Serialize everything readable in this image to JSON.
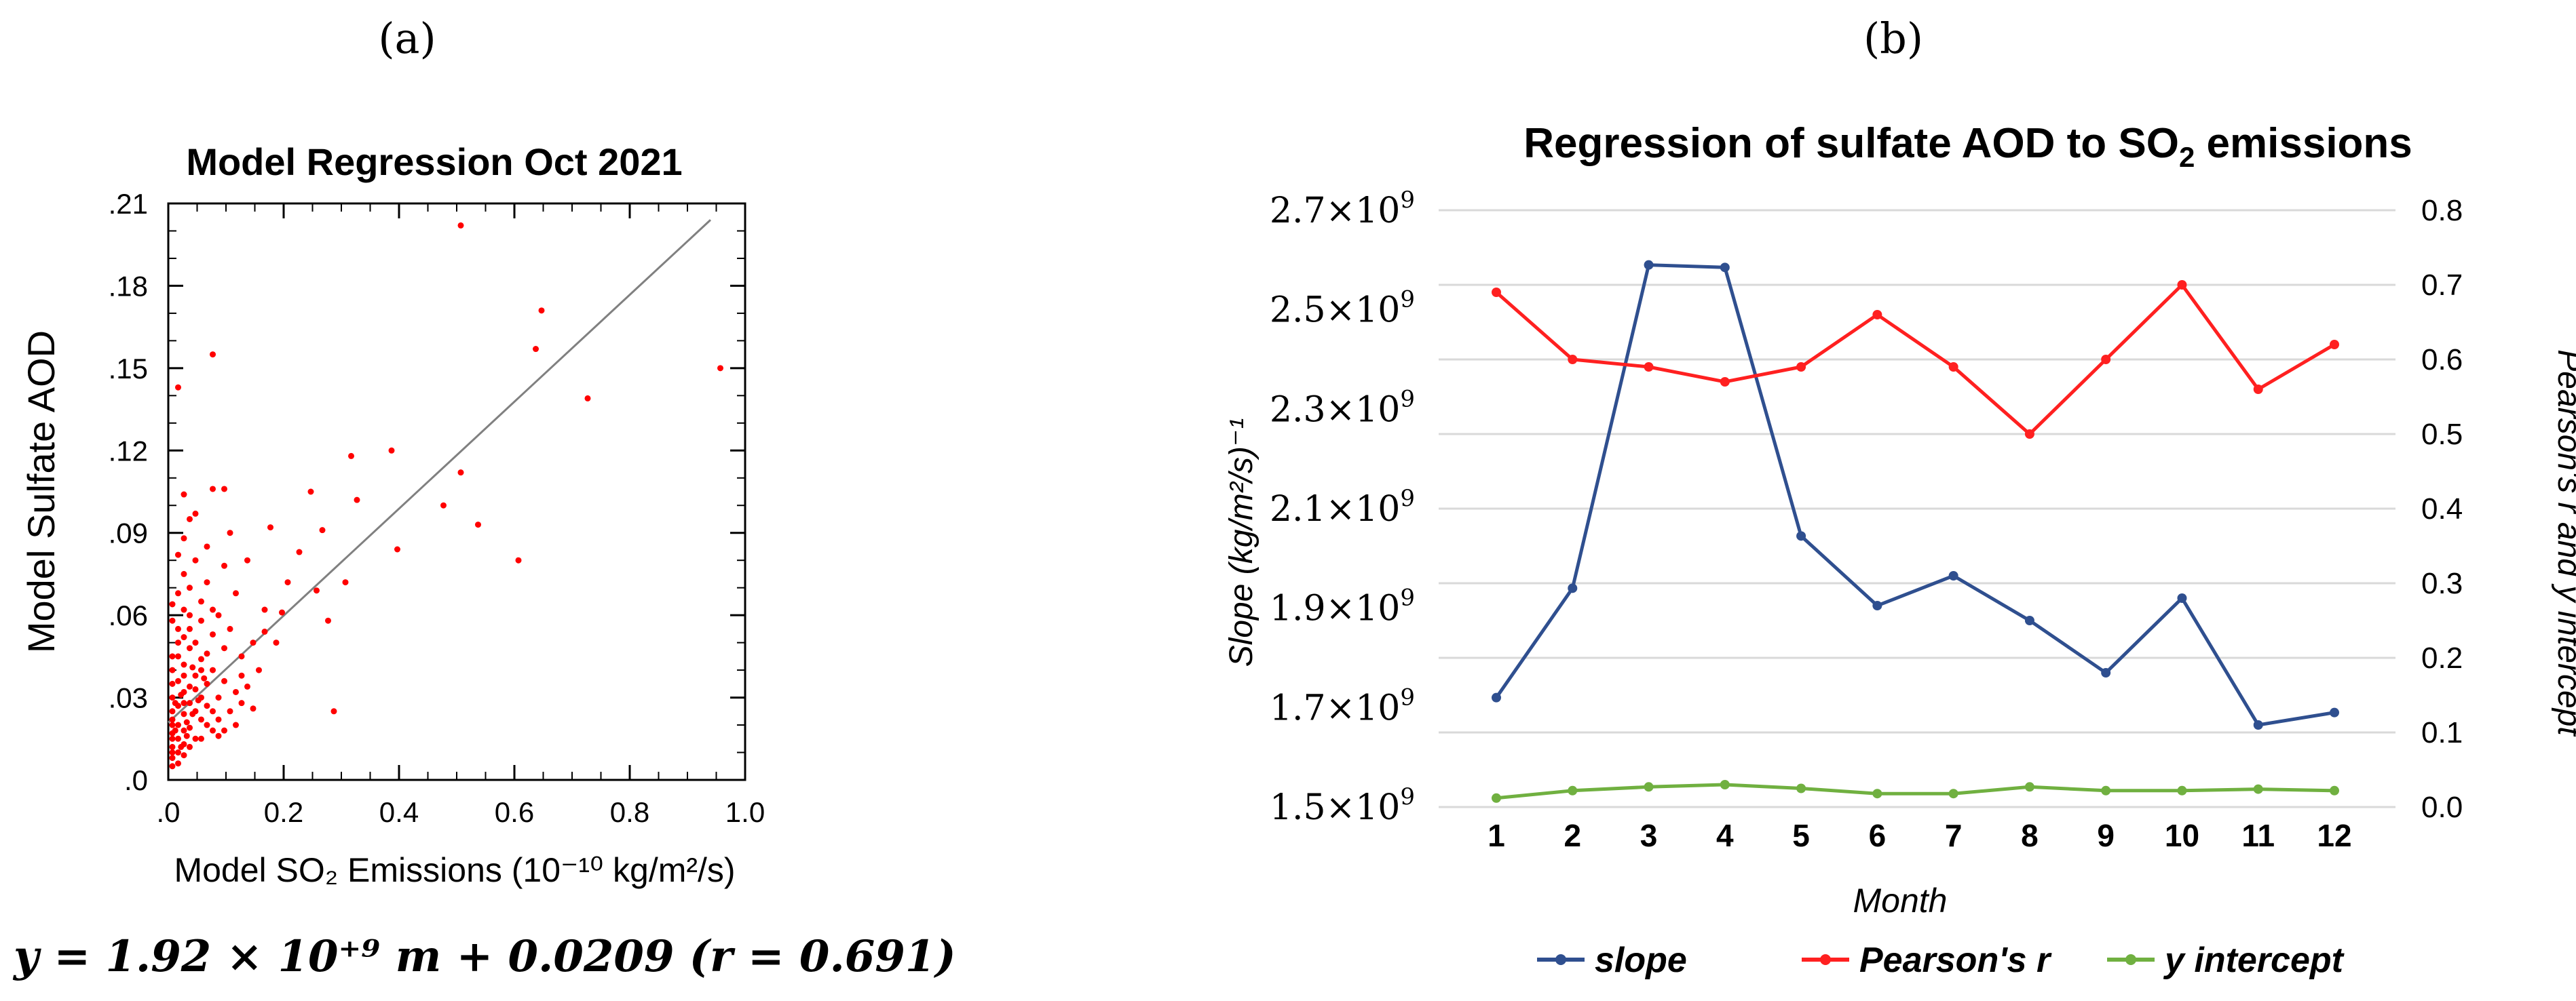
{
  "panel_a_label": "(a)",
  "panel_b_label": "(b)",
  "equation": "y = 1.92 × 10⁺⁹ m + 0.0209 (r = 0.691)",
  "colors": {
    "points": "#ff0000",
    "fit": "#808080",
    "slope": "#2f4f8f",
    "pearson": "#ff2020",
    "intercept": "#70b040",
    "grid": "#d9d9d9"
  },
  "chart_data": [
    {
      "type": "scatter",
      "title": "Model Regression Oct 2021",
      "xlabel": "Model SO₂ Emissions (10⁻¹⁰ kg/m²/s)",
      "ylabel": "Model Sulfate AOD",
      "xlim": [
        0,
        1.0
      ],
      "ylim": [
        0,
        0.21
      ],
      "xticks": [
        ".0",
        "0.2",
        "0.4",
        "0.6",
        "0.8",
        "1.0"
      ],
      "yticks": [
        ".0",
        ".03",
        ".06",
        ".09",
        ".12",
        ".15",
        ".18",
        ".21"
      ],
      "fit_line": {
        "x": [
          0,
          0.94
        ],
        "y": [
          0.0209,
          0.204
        ]
      },
      "points": [
        [
          0.5,
          0.202
        ],
        [
          0.64,
          0.171
        ],
        [
          0.63,
          0.157
        ],
        [
          0.95,
          0.15
        ],
        [
          0.72,
          0.139
        ],
        [
          0.07,
          0.155
        ],
        [
          0.01,
          0.143
        ],
        [
          0.38,
          0.12
        ],
        [
          0.31,
          0.118
        ],
        [
          0.07,
          0.106
        ],
        [
          0.09,
          0.106
        ],
        [
          0.24,
          0.105
        ],
        [
          0.32,
          0.102
        ],
        [
          0.47,
          0.1
        ],
        [
          0.02,
          0.104
        ],
        [
          0.5,
          0.112
        ],
        [
          0.53,
          0.093
        ],
        [
          0.6,
          0.08
        ],
        [
          0.39,
          0.084
        ],
        [
          0.26,
          0.091
        ],
        [
          0.22,
          0.083
        ],
        [
          0.25,
          0.069
        ],
        [
          0.3,
          0.072
        ],
        [
          0.17,
          0.092
        ],
        [
          0.13,
          0.08
        ],
        [
          0.2,
          0.072
        ],
        [
          0.27,
          0.058
        ],
        [
          0.19,
          0.061
        ],
        [
          0.16,
          0.054
        ],
        [
          0.28,
          0.025
        ],
        [
          0.14,
          0.05
        ],
        [
          0.12,
          0.045
        ],
        [
          0.1,
          0.09
        ],
        [
          0.09,
          0.078
        ],
        [
          0.11,
          0.068
        ],
        [
          0.08,
          0.06
        ],
        [
          0.07,
          0.053
        ],
        [
          0.06,
          0.072
        ],
        [
          0.05,
          0.065
        ],
        [
          0.04,
          0.097
        ],
        [
          0.03,
          0.095
        ],
        [
          0.02,
          0.088
        ],
        [
          0.01,
          0.082
        ],
        [
          0.03,
          0.07
        ],
        [
          0.02,
          0.062
        ],
        [
          0.0,
          0.058
        ],
        [
          0.01,
          0.05
        ],
        [
          0.03,
          0.048
        ],
        [
          0.05,
          0.044
        ],
        [
          0.07,
          0.04
        ],
        [
          0.09,
          0.036
        ],
        [
          0.11,
          0.032
        ],
        [
          0.12,
          0.028
        ],
        [
          0.1,
          0.025
        ],
        [
          0.08,
          0.03
        ],
        [
          0.06,
          0.035
        ],
        [
          0.04,
          0.038
        ],
        [
          0.02,
          0.042
        ],
        [
          0.0,
          0.045
        ],
        [
          0.0,
          0.04
        ],
        [
          0.01,
          0.036
        ],
        [
          0.02,
          0.032
        ],
        [
          0.03,
          0.028
        ],
        [
          0.04,
          0.025
        ],
        [
          0.05,
          0.022
        ],
        [
          0.06,
          0.02
        ],
        [
          0.07,
          0.018
        ],
        [
          0.08,
          0.016
        ],
        [
          0.0,
          0.035
        ],
        [
          0.0,
          0.03
        ],
        [
          0.01,
          0.027
        ],
        [
          0.02,
          0.024
        ],
        [
          0.0,
          0.022
        ],
        [
          0.01,
          0.02
        ],
        [
          0.02,
          0.018
        ],
        [
          0.0,
          0.017
        ],
        [
          0.01,
          0.015
        ],
        [
          0.02,
          0.013
        ],
        [
          0.0,
          0.012
        ],
        [
          0.01,
          0.01
        ],
        [
          0.0,
          0.008
        ],
        [
          0.01,
          0.006
        ],
        [
          0.0,
          0.005
        ],
        [
          0.02,
          0.009
        ],
        [
          0.03,
          0.012
        ],
        [
          0.04,
          0.015
        ],
        [
          0.03,
          0.019
        ],
        [
          0.05,
          0.03
        ],
        [
          0.06,
          0.027
        ],
        [
          0.04,
          0.033
        ],
        [
          0.13,
          0.034
        ],
        [
          0.15,
          0.04
        ],
        [
          0.16,
          0.062
        ],
        [
          0.18,
          0.05
        ],
        [
          0.1,
          0.055
        ],
        [
          0.09,
          0.048
        ],
        [
          0.07,
          0.062
        ],
        [
          0.05,
          0.058
        ],
        [
          0.03,
          0.055
        ],
        [
          0.02,
          0.052
        ],
        [
          0.01,
          0.068
        ],
        [
          0.0,
          0.064
        ],
        [
          0.02,
          0.075
        ],
        [
          0.04,
          0.08
        ],
        [
          0.06,
          0.085
        ],
        [
          0.0,
          0.025
        ],
        [
          0.0,
          0.02
        ],
        [
          0.0,
          0.015
        ],
        [
          0.0,
          0.01
        ],
        [
          0.01,
          0.045
        ],
        [
          0.02,
          0.038
        ],
        [
          0.03,
          0.034
        ],
        [
          0.05,
          0.04
        ],
        [
          0.08,
          0.022
        ],
        [
          0.11,
          0.02
        ],
        [
          0.14,
          0.026
        ],
        [
          0.12,
          0.038
        ],
        [
          0.06,
          0.046
        ],
        [
          0.04,
          0.05
        ],
        [
          0.01,
          0.055
        ],
        [
          0.03,
          0.06
        ],
        [
          0.05,
          0.015
        ],
        [
          0.07,
          0.025
        ],
        [
          0.09,
          0.018
        ],
        [
          0.02,
          0.028
        ],
        [
          0.015,
          0.031
        ],
        [
          0.025,
          0.021
        ],
        [
          0.035,
          0.024
        ],
        [
          0.045,
          0.029
        ],
        [
          0.005,
          0.018
        ],
        [
          0.015,
          0.012
        ],
        [
          0.025,
          0.016
        ],
        [
          0.005,
          0.028
        ],
        [
          0.035,
          0.041
        ],
        [
          0.055,
          0.037
        ]
      ]
    },
    {
      "type": "line",
      "title": "Regression of sulfate AOD to SO",
      "title_sub": "2",
      "title_tail": " emissions",
      "xlabel": "Month",
      "ylabel_left": "Slope  (kg/m²/s)⁻¹",
      "ylabel_right": "Pearson's r and y intercept",
      "categories": [
        "1",
        "2",
        "3",
        "4",
        "5",
        "6",
        "7",
        "8",
        "9",
        "10",
        "11",
        "12"
      ],
      "left_ylim": [
        1500000000.0,
        2700000000.0
      ],
      "left_ticks": [
        {
          "value": 1500000000.0,
          "mantissa": "1.5",
          "exp": "9"
        },
        {
          "value": 1700000000.0,
          "mantissa": "1.7",
          "exp": "9"
        },
        {
          "value": 1900000000.0,
          "mantissa": "1.9",
          "exp": "9"
        },
        {
          "value": 2100000000.0,
          "mantissa": "2.1",
          "exp": "9"
        },
        {
          "value": 2300000000.0,
          "mantissa": "2.3",
          "exp": "9"
        },
        {
          "value": 2500000000.0,
          "mantissa": "2.5",
          "exp": "9"
        },
        {
          "value": 2700000000.0,
          "mantissa": "2.7",
          "exp": "9"
        }
      ],
      "right_ylim": [
        0,
        0.8
      ],
      "right_ticks": [
        "0.0",
        "0.1",
        "0.2",
        "0.3",
        "0.4",
        "0.5",
        "0.6",
        "0.7",
        "0.8"
      ],
      "series": [
        {
          "name": "slope",
          "axis": "left",
          "values": [
            1720000000.0,
            1940000000.0,
            2590000000.0,
            2585000000.0,
            2045000000.0,
            1905000000.0,
            1965000000.0,
            1875000000.0,
            1770000000.0,
            1920000000.0,
            1665000000.0,
            1690000000.0
          ]
        },
        {
          "name": "Pearson's r",
          "axis": "right",
          "values": [
            0.69,
            0.6,
            0.59,
            0.57,
            0.59,
            0.66,
            0.59,
            0.5,
            0.6,
            0.7,
            0.56,
            0.62
          ]
        },
        {
          "name": "y intercept",
          "axis": "right",
          "values": [
            0.012,
            0.022,
            0.027,
            0.03,
            0.025,
            0.018,
            0.018,
            0.027,
            0.022,
            0.022,
            0.024,
            0.022
          ]
        }
      ]
    }
  ]
}
